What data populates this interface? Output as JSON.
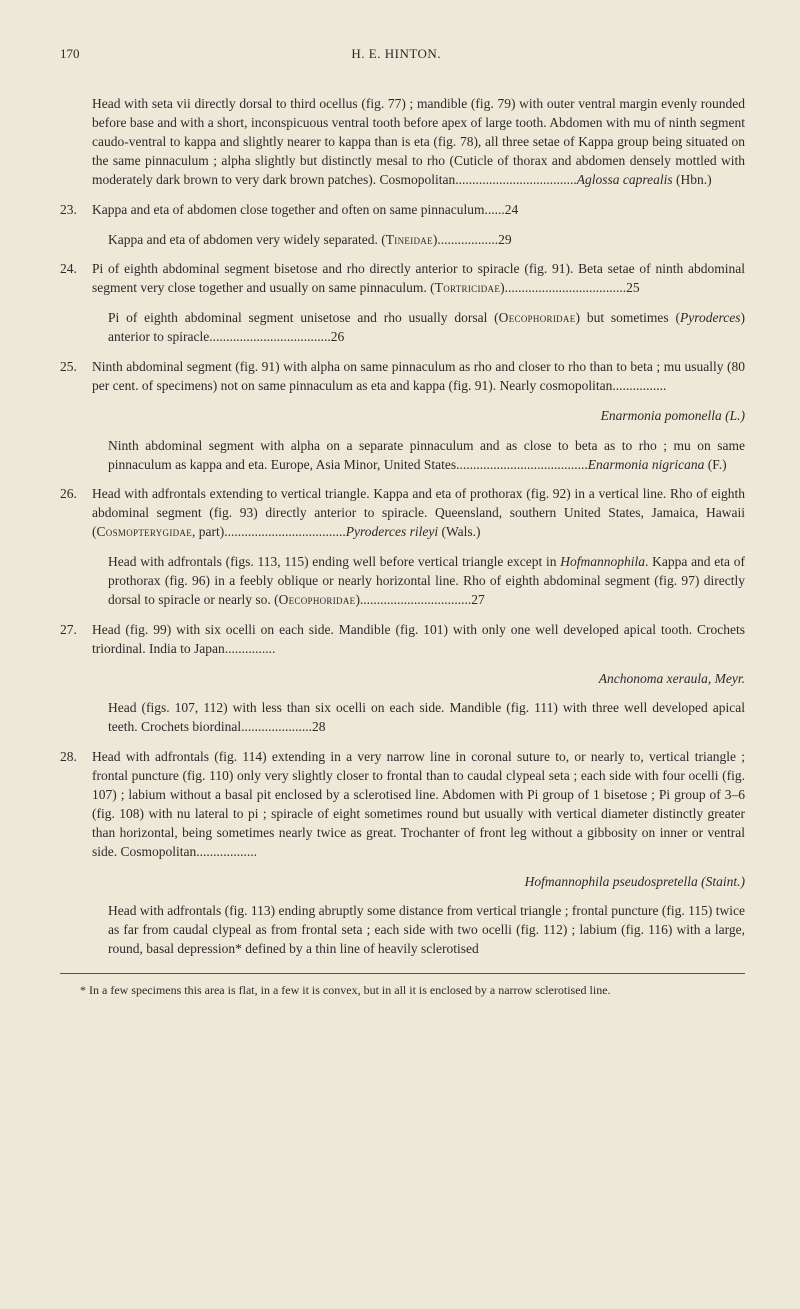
{
  "header": {
    "page_number": "170",
    "author": "H. E. HINTON."
  },
  "entries": [
    {
      "number": "",
      "text": "Head with seta vii directly dorsal to third ocellus (fig. 77) ; mandible (fig. 79) with outer ventral margin evenly rounded before base and with a short, inconspicuous ventral tooth before apex of large tooth. Abdomen with mu of ninth segment caudo-ventral to kappa and slightly nearer to kappa than is eta (fig. 78), all three setae of Kappa group being situated on the same pinnaculum ; alpha slightly but distinctly mesal to rho (Cuticle of thorax and abdomen densely mottled with moderately dark brown to very dark brown patches). Cosmopolitan....................................<i>Aglossa caprealis</i> (Hbn.)"
    },
    {
      "number": "23.",
      "text": "Kappa and eta of abdomen close together and often on same pinnaculum......24"
    },
    {
      "number": "",
      "text": "Kappa and eta of abdomen very widely separated. (<sc>Tineidae</sc>)..................29",
      "sub": true
    },
    {
      "number": "24.",
      "text": "Pi of eighth abdominal segment bisetose and rho directly anterior to spiracle (fig. 91). Beta setae of ninth abdominal segment very close together and usually on same pinnaculum. (<sc>Tortricidae</sc>)....................................25"
    },
    {
      "number": "",
      "text": "Pi of eighth abdominal segment unisetose and rho usually dorsal (<sc>Oecophoridae</sc>) but sometimes (<i>Pyroderces</i>) anterior to spiracle....................................26",
      "sub": true
    },
    {
      "number": "25.",
      "text": "Ninth abdominal segment (fig. 91) with alpha on same pinnaculum as rho and closer to rho than to beta ; mu usually (80 per cent. of specimens) not on same pinnaculum as eta and kappa (fig. 91). Nearly cosmopolitan................"
    },
    {
      "number": "",
      "text": "<i>Enarmonia pomonella</i> (L.)",
      "cont": true
    },
    {
      "number": "",
      "text": "Ninth abdominal segment with alpha on a separate pinnaculum and as close to beta as to rho ; mu on same pinnaculum as kappa and eta. Europe, Asia Minor, United States.......................................<i>Enarmonia nigricana</i> (F.)",
      "sub": true
    },
    {
      "number": "26.",
      "text": "Head with adfrontals extending to vertical triangle. Kappa and eta of prothorax (fig. 92) in a vertical line. Rho of eighth abdominal segment (fig. 93) directly anterior to spiracle. Queensland, southern United States, Jamaica, Hawaii (<sc>Cosmopterygidae</sc>, part)....................................<i>Pyroderces rileyi</i> (Wals.)"
    },
    {
      "number": "",
      "text": "Head with adfrontals (figs. 113, 115) ending well before vertical triangle except in <i>Hofmannophila</i>. Kappa and eta of prothorax (fig. 96) in a feebly oblique or nearly horizontal line. Rho of eighth abdominal segment (fig. 97) directly dorsal to spiracle or nearly so. (<sc>Oecophoridae</sc>).................................27",
      "sub": true
    },
    {
      "number": "27.",
      "text": "Head (fig. 99) with six ocelli on each side. Mandible (fig. 101) with only one well developed apical tooth. Crochets triordinal. India to Japan..............."
    },
    {
      "number": "",
      "text": "<i>Anchonoma xeraula</i>, Meyr.",
      "cont": true
    },
    {
      "number": "",
      "text": "Head (figs. 107, 112) with less than six ocelli on each side. Mandible (fig. 111) with three well developed apical teeth. Crochets biordinal.....................28",
      "sub": true
    },
    {
      "number": "28.",
      "text": "Head with adfrontals (fig. 114) extending in a very narrow line in coronal suture to, or nearly to, vertical triangle ; frontal puncture (fig. 110) only very slightly closer to frontal than to caudal clypeal seta ; each side with four ocelli (fig. 107) ; labium without a basal pit enclosed by a sclerotised line. Abdomen with Pi group of 1 bisetose ; Pi group of 3–6 (fig. 108) with nu lateral to pi ; spiracle of eight sometimes round but usually with vertical diameter distinctly greater than horizontal, being sometimes nearly twice as great. Trochanter of front leg without a gibbosity on inner or ventral side. Cosmopolitan.................."
    },
    {
      "number": "",
      "text": "<i>Hofmannophila pseudospretella</i> (Staint.)",
      "cont": true
    },
    {
      "number": "",
      "text": "Head with adfrontals (fig. 113) ending abruptly some distance from vertical triangle ; frontal puncture (fig. 115) twice as far from caudal clypeal as from frontal seta ; each side with two ocelli (fig. 112) ; labium (fig. 116) with a large, round, basal depression* defined by a thin line of heavily sclerotised",
      "sub": true
    }
  ],
  "footnote": "* In a few specimens this area is flat, in a few it is convex, but in all it is enclosed by a narrow sclerotised line."
}
